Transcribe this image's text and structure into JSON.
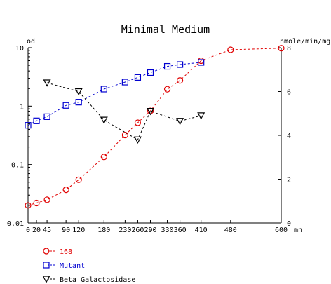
{
  "chart_data": {
    "type": "line",
    "title": "Minimal Medium",
    "y_left_unit": "od",
    "y_right_unit": "nmole/min/mg",
    "x_unit": "mn",
    "x_ticks": [
      0,
      20,
      45,
      90,
      120,
      180,
      230,
      260,
      290,
      330,
      360,
      410,
      480,
      600
    ],
    "xlim": [
      0,
      600
    ],
    "y_left_scale": "log",
    "y_left_ticks": [
      {
        "value": 0.01,
        "label": "0.01"
      },
      {
        "value": 0.1,
        "label": "0.1"
      },
      {
        "value": 1,
        "label": "1"
      },
      {
        "value": 10,
        "label": "10"
      }
    ],
    "y_left_lim": [
      0.01,
      10
    ],
    "y_right_ticks": [
      0,
      2,
      4,
      6,
      8
    ],
    "y_right_lim": [
      0,
      8
    ],
    "grid": false,
    "legend_position": "bottom-left",
    "series": [
      {
        "name": "168",
        "axis": "left",
        "marker": "circle",
        "color": "#e00000",
        "x": [
          0,
          20,
          45,
          90,
          120,
          180,
          230,
          260,
          290,
          330,
          360,
          410,
          480,
          600
        ],
        "y": [
          0.02,
          0.022,
          0.025,
          0.037,
          0.055,
          0.135,
          0.32,
          0.52,
          0.83,
          1.95,
          2.75,
          6.0,
          9.2,
          9.8
        ]
      },
      {
        "name": "Mutant",
        "axis": "left",
        "marker": "square",
        "color": "#0000d0",
        "x": [
          0,
          20,
          45,
          90,
          120,
          180,
          230,
          260,
          290,
          330,
          360,
          410
        ],
        "y": [
          0.47,
          0.56,
          0.66,
          1.03,
          1.17,
          1.96,
          2.58,
          3.1,
          3.75,
          4.8,
          5.15,
          5.6
        ]
      },
      {
        "name": "Beta Galactosidase",
        "axis": "right",
        "marker": "triangle-down",
        "color": "#000000",
        "x": [
          45,
          120,
          180,
          260,
          290,
          360,
          410
        ],
        "y": [
          6.4,
          6.0,
          4.7,
          3.8,
          5.1,
          4.65,
          4.9
        ]
      }
    ]
  }
}
